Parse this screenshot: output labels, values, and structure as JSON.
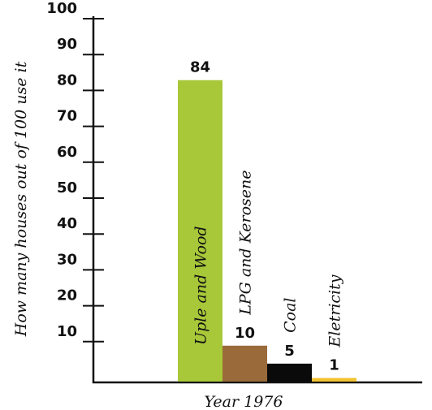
{
  "chart_data": {
    "type": "bar",
    "categories": [
      "Uple and Wood",
      "LPG and Kerosene",
      "Coal",
      "Eletricity"
    ],
    "values": [
      84,
      10,
      5,
      1
    ],
    "value_labels": [
      "84",
      "10",
      "5",
      "1"
    ],
    "colors": [
      "#a8c83a",
      "#9a6a3a",
      "#0a0a0a",
      "#f2c230"
    ],
    "title": "",
    "xlabel": "Year 1976",
    "ylabel": "How many houses out of 100 use it",
    "ylim": [
      0,
      100
    ],
    "yticks": [
      10,
      20,
      30,
      40,
      50,
      60,
      70,
      80,
      90,
      100
    ],
    "ytick_labels": [
      "10",
      "20",
      "30",
      "40",
      "50",
      "60",
      "70",
      "80",
      "90",
      "100"
    ],
    "grid": false,
    "legend": "none"
  }
}
